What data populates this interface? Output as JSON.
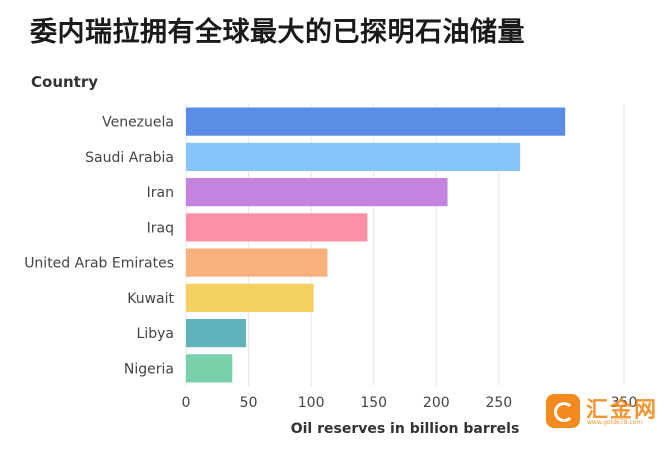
{
  "title": "委内瑞拉拥有全球最大的已探明石油储量",
  "watermark": {
    "text": "汇金网",
    "sub": "www.gold678.com",
    "color": "#f28a1e"
  },
  "chart_data": {
    "type": "bar",
    "orientation": "horizontal",
    "ylabel": "Country",
    "xlabel": "Oil reserves in billion barrels",
    "xlim": [
      0,
      350
    ],
    "xticks": [
      0,
      50,
      100,
      150,
      200,
      250,
      350
    ],
    "grid": true,
    "categories": [
      "Venezuela",
      "Saudi Arabia",
      "Iran",
      "Iraq",
      "United Arab Emirates",
      "Kuwait",
      "Libya",
      "Nigeria"
    ],
    "values": [
      303,
      267,
      209,
      145,
      113,
      102,
      48,
      37
    ],
    "colors": [
      "#5b8de6",
      "#86c5fa",
      "#c384e0",
      "#fd8fa7",
      "#f8b07c",
      "#f3d060",
      "#60b2bd",
      "#79cfaa"
    ]
  }
}
